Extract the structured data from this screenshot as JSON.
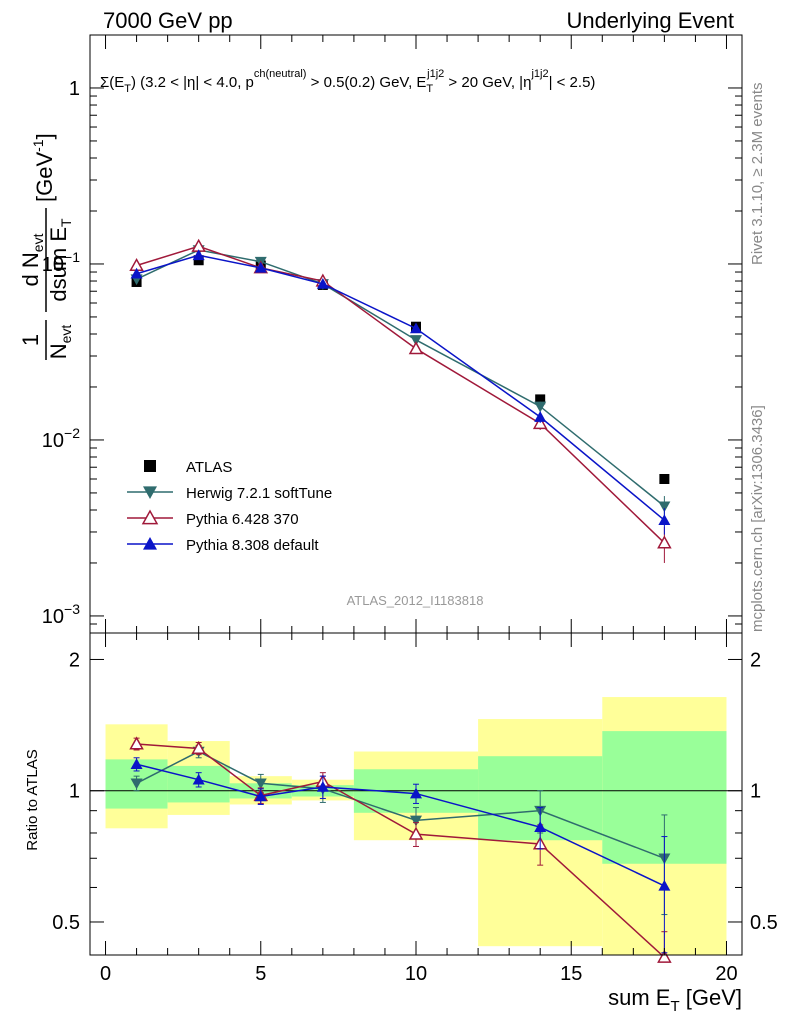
{
  "header": {
    "left": "7000 GeV pp",
    "right": "Underlying Event"
  },
  "side_labels": {
    "rivet": "Rivet 3.1.10, ≥ 2.3M events",
    "mcplots": "mcplots.cern.ch [arXiv:1306.3436]"
  },
  "analysis_id": "ATLAS_2012_I1183818",
  "chart_data": [
    {
      "type": "scatter",
      "panel": "main",
      "title_parts": [
        "Σ(E",
        "T",
        ") (3.2 < |η| < 4.0, p",
        "ch(neutral)",
        " > 0.5(0.2) GeV, E",
        "T",
        "j1j2",
        " > 20 GeV, |η",
        "j1j2",
        "| < 2.5)"
      ],
      "ylabel_parts": [
        "1",
        "N",
        "evt",
        "d N",
        "evt",
        "dsum E",
        "T",
        "[GeV",
        "-1",
        "]"
      ],
      "y_scale": "log",
      "ylim": [
        0.0008,
        2.0
      ],
      "y_ticks": [
        {
          "value": 0.001,
          "base": "10",
          "exp": "−3"
        },
        {
          "value": 0.01,
          "base": "10",
          "exp": "−2"
        },
        {
          "value": 0.1,
          "base": "10",
          "exp": "−1"
        },
        {
          "value": 1,
          "base": "1",
          "exp": ""
        }
      ],
      "xlim": [
        -0.5,
        20.5
      ],
      "legend_position": "bottom-left",
      "series": [
        {
          "name": "ATLAS",
          "color": "#000000",
          "marker": "square",
          "x": [
            1,
            3,
            5,
            7,
            10,
            14,
            18
          ],
          "y": [
            0.079,
            0.105,
            0.098,
            0.076,
            0.044,
            0.017,
            0.006
          ],
          "err": [
            0,
            0,
            0,
            0,
            0,
            0,
            0
          ]
        },
        {
          "name": "Herwig 7.2.1 softTune",
          "color": "#2f6c6e",
          "marker": "triangle-down",
          "x": [
            1,
            3,
            5,
            7,
            10,
            14,
            18
          ],
          "y": [
            0.082,
            0.12,
            0.103,
            0.077,
            0.037,
            0.0155,
            0.0042
          ],
          "err": [
            0.002,
            0.004,
            0.003,
            0.003,
            0.0015,
            0.001,
            0.0006
          ]
        },
        {
          "name": "Pythia 6.428 370",
          "color": "#a0193a",
          "marker": "triangle-open",
          "x": [
            1,
            3,
            5,
            7,
            10,
            14,
            18
          ],
          "y": [
            0.098,
            0.126,
            0.095,
            0.08,
            0.033,
            0.0124,
            0.0026
          ],
          "err": [
            0.002,
            0.004,
            0.003,
            0.003,
            0.0015,
            0.001,
            0.0006
          ]
        },
        {
          "name": "Pythia 8.308 default",
          "color": "#0a14c8",
          "marker": "triangle-up",
          "x": [
            1,
            3,
            5,
            7,
            10,
            14,
            18
          ],
          "y": [
            0.088,
            0.112,
            0.095,
            0.077,
            0.043,
            0.0135,
            0.0035
          ],
          "err": [
            0.002,
            0.004,
            0.003,
            0.003,
            0.0015,
            0.001,
            0.0006
          ]
        }
      ]
    },
    {
      "type": "scatter",
      "panel": "ratio",
      "ylabel": "Ratio to ATLAS",
      "xlabel_parts": [
        "sum E",
        "T",
        " [GeV]"
      ],
      "y_scale": "log",
      "ylim": [
        0.42,
        2.3
      ],
      "y_ticks": [
        0.5,
        1,
        2
      ],
      "xlim": [
        -0.5,
        20.5
      ],
      "x_ticks": [
        0,
        5,
        10,
        15,
        20
      ],
      "reference_line": 1,
      "bands": {
        "bin_edges": [
          0,
          2,
          4,
          6,
          8,
          12,
          16,
          20
        ],
        "yellow": [
          [
            0.82,
            1.42
          ],
          [
            0.88,
            1.3
          ],
          [
            0.93,
            1.08
          ],
          [
            0.95,
            1.06
          ],
          [
            0.77,
            1.23
          ],
          [
            0.44,
            1.46
          ],
          [
            0.36,
            1.64
          ]
        ],
        "green": [
          [
            0.91,
            1.18
          ],
          [
            0.94,
            1.14
          ],
          [
            0.96,
            1.04
          ],
          [
            0.97,
            1.03
          ],
          [
            0.89,
            1.12
          ],
          [
            0.77,
            1.2
          ],
          [
            0.68,
            1.37
          ]
        ]
      },
      "series": [
        {
          "name": "Herwig 7.2.1 softTune",
          "color": "#2f6c6e",
          "marker": "triangle-down",
          "x": [
            1,
            3,
            5,
            7,
            10,
            14,
            18
          ],
          "y": [
            1.04,
            1.23,
            1.04,
            1.01,
            0.855,
            0.9,
            0.7
          ],
          "err": [
            0.04,
            0.04,
            0.05,
            0.07,
            0.06,
            0.1,
            0.18
          ]
        },
        {
          "name": "Pythia 6.428 370",
          "color": "#a0193a",
          "marker": "triangle-open",
          "x": [
            1,
            3,
            5,
            7,
            10,
            14,
            18
          ],
          "y": [
            1.28,
            1.25,
            0.975,
            1.05,
            0.795,
            0.755,
            0.415
          ],
          "err": [
            0.04,
            0.04,
            0.04,
            0.05,
            0.05,
            0.08,
            0.06
          ]
        },
        {
          "name": "Pythia 8.308 default",
          "color": "#0a14c8",
          "marker": "triangle-up",
          "x": [
            1,
            3,
            5,
            7,
            10,
            14,
            18
          ],
          "y": [
            1.15,
            1.06,
            0.97,
            1.02,
            0.985,
            0.825,
            0.605
          ],
          "err": [
            0.04,
            0.04,
            0.04,
            0.06,
            0.05,
            0.09,
            0.18
          ]
        }
      ]
    }
  ]
}
